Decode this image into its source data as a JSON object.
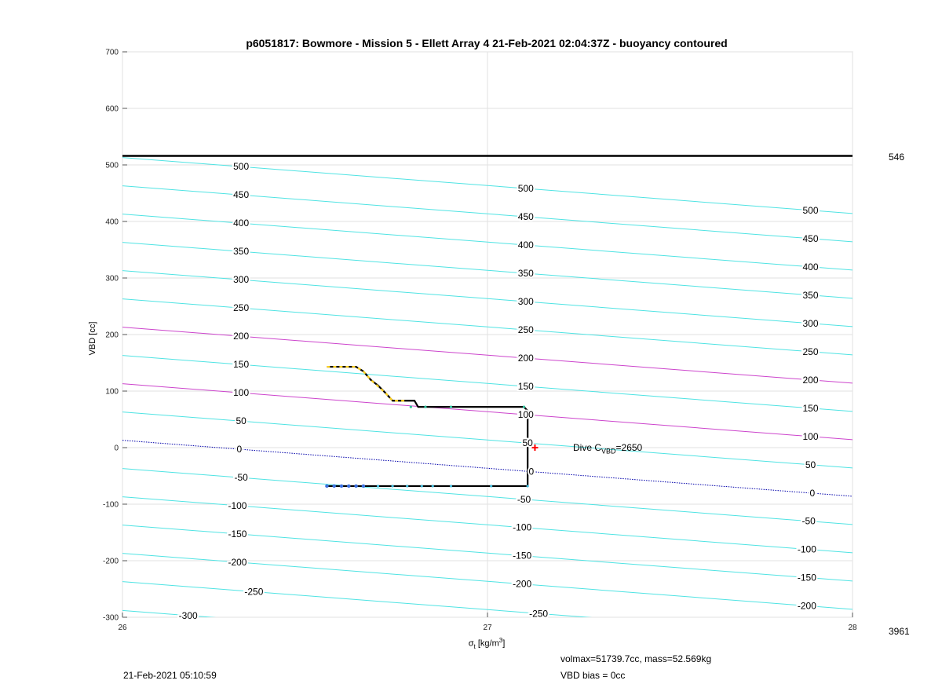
{
  "title": "p6051817: Bowmore - Mission 5 - Ellett Array 4 21-Feb-2021 02:04:37Z - buoyancy contoured",
  "axes": {
    "ylabel": "VBD [cc]",
    "xlabel_sym": "σ",
    "xlabel_sub": "t",
    "xlabel_unit": " [kg/m",
    "xlabel_sup": "3",
    "xlabel_end": "]"
  },
  "right_labels": {
    "top": "546",
    "bottom": "3961"
  },
  "dive": {
    "prefix": "Dive C",
    "sub": "VBD",
    "suffix": "=2650"
  },
  "footer": {
    "info1": "volmax=51739.7cc, mass=52.569kg",
    "info2": "VBD bias = 0cc",
    "timestamp": "21-Feb-2021 05:10:59"
  },
  "colors": {
    "contour": "#4fe3e3",
    "magenta": "#cc44cc",
    "zero": "#0000aa",
    "trace": "#000000",
    "yellow": "#ffd21f",
    "red": "#ff0000"
  },
  "chart_data": {
    "type": "line",
    "xlim": [
      26,
      28
    ],
    "ylim": [
      -300,
      700
    ],
    "xticks": [
      26,
      27,
      28
    ],
    "yticks": [
      -300,
      -200,
      -100,
      0,
      100,
      200,
      300,
      400,
      500,
      600,
      700
    ],
    "grid": true,
    "max_vbd_line": 516,
    "contour_slope_cc_per_kgm3": -49.5,
    "contours": [
      {
        "label": "-300",
        "y_at_xmin": -288
      },
      {
        "label": "-250",
        "y_at_xmin": -237
      },
      {
        "label": "-200",
        "y_at_xmin": -187
      },
      {
        "label": "-150",
        "y_at_xmin": -137
      },
      {
        "label": "-100",
        "y_at_xmin": -87
      },
      {
        "label": "-50",
        "y_at_xmin": -37
      },
      {
        "label": "0",
        "y_at_xmin": 13
      },
      {
        "label": "50",
        "y_at_xmin": 63
      },
      {
        "label": "100",
        "y_at_xmin": 113
      },
      {
        "label": "150",
        "y_at_xmin": 163
      },
      {
        "label": "200",
        "y_at_xmin": 213
      },
      {
        "label": "250",
        "y_at_xmin": 263
      },
      {
        "label": "300",
        "y_at_xmin": 313
      },
      {
        "label": "350",
        "y_at_xmin": 363
      },
      {
        "label": "400",
        "y_at_xmin": 413
      },
      {
        "label": "450",
        "y_at_xmin": 463
      },
      {
        "label": "500",
        "y_at_xmin": 513
      }
    ],
    "label_positions": [
      {
        "contour": "500",
        "x": 26.325
      },
      {
        "contour": "450",
        "x": 26.325
      },
      {
        "contour": "400",
        "x": 26.325
      },
      {
        "contour": "350",
        "x": 26.325
      },
      {
        "contour": "300",
        "x": 26.325
      },
      {
        "contour": "250",
        "x": 26.325
      },
      {
        "contour": "200",
        "x": 26.325
      },
      {
        "contour": "150",
        "x": 26.325
      },
      {
        "contour": "100",
        "x": 26.325
      },
      {
        "contour": "50",
        "x": 26.325
      },
      {
        "contour": "0",
        "x": 26.32
      },
      {
        "contour": "-50",
        "x": 26.325
      },
      {
        "contour": "-100",
        "x": 26.315
      },
      {
        "contour": "-150",
        "x": 26.315
      },
      {
        "contour": "-200",
        "x": 26.315
      },
      {
        "contour": "-250",
        "x": 26.36
      },
      {
        "contour": "-300",
        "x": 26.18
      },
      {
        "contour": "500",
        "x": 27.105
      },
      {
        "contour": "450",
        "x": 27.105
      },
      {
        "contour": "400",
        "x": 27.105
      },
      {
        "contour": "350",
        "x": 27.105
      },
      {
        "contour": "300",
        "x": 27.105
      },
      {
        "contour": "250",
        "x": 27.105
      },
      {
        "contour": "200",
        "x": 27.105
      },
      {
        "contour": "150",
        "x": 27.105
      },
      {
        "contour": "100",
        "x": 27.105
      },
      {
        "contour": "50",
        "x": 27.11
      },
      {
        "contour": "0",
        "x": 27.12
      },
      {
        "contour": "-50",
        "x": 27.1
      },
      {
        "contour": "-100",
        "x": 27.095
      },
      {
        "contour": "-150",
        "x": 27.095
      },
      {
        "contour": "-200",
        "x": 27.095
      },
      {
        "contour": "-250",
        "x": 27.14
      },
      {
        "contour": "500",
        "x": 27.885
      },
      {
        "contour": "450",
        "x": 27.885
      },
      {
        "contour": "400",
        "x": 27.885
      },
      {
        "contour": "350",
        "x": 27.885
      },
      {
        "contour": "300",
        "x": 27.885
      },
      {
        "contour": "250",
        "x": 27.885
      },
      {
        "contour": "200",
        "x": 27.885
      },
      {
        "contour": "150",
        "x": 27.885
      },
      {
        "contour": "100",
        "x": 27.885
      },
      {
        "contour": "50",
        "x": 27.885
      },
      {
        "contour": "0",
        "x": 27.89
      },
      {
        "contour": "-50",
        "x": 27.88
      },
      {
        "contour": "-100",
        "x": 27.875
      },
      {
        "contour": "-150",
        "x": 27.875
      },
      {
        "contour": "-200",
        "x": 27.875
      }
    ],
    "magenta_contours": [
      "100",
      "200"
    ],
    "zero_contour": "0",
    "trace": [
      [
        26.56,
        143
      ],
      [
        26.64,
        143
      ],
      [
        26.66,
        135
      ],
      [
        26.68,
        120
      ],
      [
        26.7,
        110
      ],
      [
        26.72,
        97
      ],
      [
        26.74,
        83
      ],
      [
        26.8,
        83
      ],
      [
        26.81,
        72
      ],
      [
        27.1,
        72
      ],
      [
        27.11,
        65
      ],
      [
        27.11,
        -12
      ],
      [
        27.11,
        -68
      ],
      [
        26.56,
        -68
      ]
    ],
    "yellow_segment": [
      [
        26.56,
        143
      ],
      [
        26.64,
        143
      ],
      [
        26.66,
        135
      ],
      [
        26.68,
        120
      ],
      [
        26.72,
        97
      ],
      [
        26.74,
        83
      ],
      [
        26.78,
        83
      ]
    ],
    "climb_points_x": [
      26.79,
      26.83,
      26.9,
      27.1
    ],
    "climb_points_y": 72,
    "dive_points_x": [
      26.56,
      26.58,
      26.6,
      26.62,
      26.64,
      26.66,
      26.7,
      26.74,
      26.78,
      26.82,
      26.85,
      26.9,
      27.01,
      27.11
    ],
    "dive_points_y": -68,
    "dive_marker": [
      27.13,
      0
    ]
  }
}
